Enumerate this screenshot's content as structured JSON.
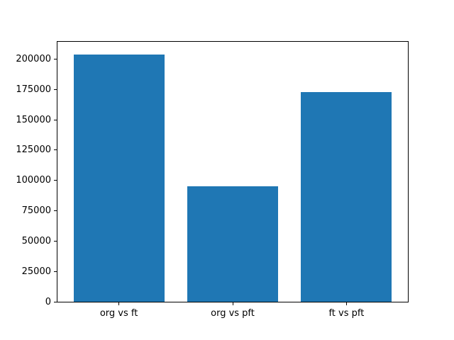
{
  "chart_data": {
    "type": "bar",
    "categories": [
      "org vs ft",
      "org vs pft",
      "ft vs pft"
    ],
    "values": [
      204000,
      95000,
      173000
    ],
    "title": "",
    "xlabel": "",
    "ylabel": "",
    "ylim": [
      0,
      214200
    ],
    "xlim": [
      -0.54,
      2.54
    ],
    "yticks": [
      0,
      25000,
      50000,
      75000,
      100000,
      125000,
      150000,
      175000,
      200000
    ],
    "bar_width": 0.8,
    "bar_color": "#1f77b4",
    "grid": false,
    "legend": "none"
  },
  "colors": {
    "background": "#ffffff",
    "axis": "#000000",
    "text": "#000000"
  }
}
